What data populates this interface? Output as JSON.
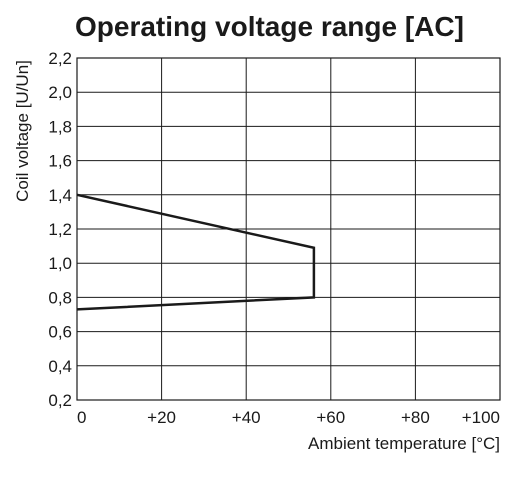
{
  "chart_data": {
    "type": "line",
    "title": "Operating voltage range [AC]",
    "xlabel": "Ambient temperature [°C]",
    "ylabel": "Coil voltage [U/Un]",
    "xlim": [
      0,
      100
    ],
    "ylim": [
      0.2,
      2.2
    ],
    "x_ticks": [
      0,
      20,
      40,
      60,
      80,
      100
    ],
    "x_tick_labels": [
      "0",
      "+20",
      "+40",
      "+60",
      "+80",
      "+100"
    ],
    "y_ticks": [
      0.2,
      0.4,
      0.6,
      0.8,
      1.0,
      1.2,
      1.4,
      1.6,
      1.8,
      2.0,
      2.2
    ],
    "y_tick_labels": [
      "0,2",
      "0,4",
      "0,6",
      "0,8",
      "1,0",
      "1,2",
      "1,4",
      "1,6",
      "1,8",
      "2,0",
      "2,2"
    ],
    "grid": true,
    "series": [
      {
        "color": "#1a1a1a",
        "x": [
          0,
          56,
          56,
          0
        ],
        "y": [
          1.4,
          1.09,
          0.8,
          0.73
        ]
      }
    ]
  }
}
